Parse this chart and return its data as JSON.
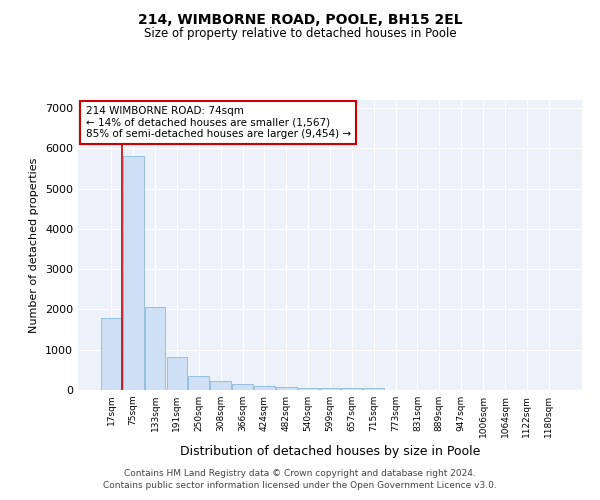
{
  "title": "214, WIMBORNE ROAD, POOLE, BH15 2EL",
  "subtitle": "Size of property relative to detached houses in Poole",
  "xlabel": "Distribution of detached houses by size in Poole",
  "ylabel": "Number of detached properties",
  "bar_color": "#cde0f5",
  "bar_edge_color": "#7aafd4",
  "highlight_color": "#cc0000",
  "background_color": "#edf2fa",
  "grid_color": "#ffffff",
  "categories": [
    "17sqm",
    "75sqm",
    "133sqm",
    "191sqm",
    "250sqm",
    "308sqm",
    "366sqm",
    "424sqm",
    "482sqm",
    "540sqm",
    "599sqm",
    "657sqm",
    "715sqm",
    "773sqm",
    "831sqm",
    "889sqm",
    "947sqm",
    "1006sqm",
    "1064sqm",
    "1122sqm",
    "1180sqm"
  ],
  "values": [
    1800,
    5800,
    2050,
    820,
    340,
    220,
    140,
    100,
    70,
    60,
    50,
    45,
    40,
    0,
    0,
    0,
    0,
    0,
    0,
    0,
    0
  ],
  "highlight_bar_index": 1,
  "annotation_text": "214 WIMBORNE ROAD: 74sqm\n← 14% of detached houses are smaller (1,567)\n85% of semi-detached houses are larger (9,454) →",
  "ylim": [
    0,
    7200
  ],
  "yticks": [
    0,
    1000,
    2000,
    3000,
    4000,
    5000,
    6000,
    7000
  ],
  "footer_line1": "Contains HM Land Registry data © Crown copyright and database right 2024.",
  "footer_line2": "Contains public sector information licensed under the Open Government Licence v3.0."
}
